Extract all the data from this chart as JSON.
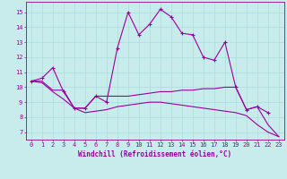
{
  "xlabel": "Windchill (Refroidissement éolien,°C)",
  "xlim": [
    -0.5,
    23.5
  ],
  "ylim": [
    6.5,
    15.7
  ],
  "yticks": [
    7,
    8,
    9,
    10,
    11,
    12,
    13,
    14,
    15
  ],
  "xticks": [
    0,
    1,
    2,
    3,
    4,
    5,
    6,
    7,
    8,
    9,
    10,
    11,
    12,
    13,
    14,
    15,
    16,
    17,
    18,
    19,
    20,
    21,
    22,
    23
  ],
  "bg_color": "#c8ecec",
  "line_color": "#990099",
  "grid_color": "#aadddd",
  "curve1_x": [
    0,
    1,
    2,
    3,
    4,
    5,
    6,
    7,
    8,
    9,
    10,
    11,
    12,
    13,
    14,
    15,
    16,
    17,
    18,
    19,
    20,
    21,
    22,
    23
  ],
  "curve1_y": [
    10.4,
    10.6,
    11.3,
    9.7,
    8.6,
    8.6,
    9.4,
    9.0,
    12.6,
    15.0,
    13.5,
    14.2,
    15.2,
    14.7,
    13.6,
    13.5,
    12.0,
    11.8,
    13.0,
    10.0,
    8.5,
    8.7,
    8.3,
    null
  ],
  "curve2_x": [
    0,
    1,
    2,
    3,
    4,
    5,
    6,
    7,
    8,
    9,
    10,
    11,
    12,
    13,
    14,
    15,
    16,
    17,
    18,
    19,
    20,
    21,
    22,
    23
  ],
  "curve2_y": [
    10.4,
    10.4,
    9.8,
    9.8,
    8.6,
    8.6,
    9.4,
    9.4,
    9.4,
    9.4,
    9.5,
    9.6,
    9.7,
    9.7,
    9.8,
    9.8,
    9.9,
    9.9,
    10.0,
    10.0,
    8.5,
    8.7,
    7.5,
    6.7
  ],
  "curve3_x": [
    0,
    1,
    2,
    3,
    4,
    5,
    6,
    7,
    8,
    9,
    10,
    11,
    12,
    13,
    14,
    15,
    16,
    17,
    18,
    19,
    20,
    21,
    22,
    23
  ],
  "curve3_y": [
    10.4,
    10.3,
    9.7,
    9.2,
    8.6,
    8.3,
    8.4,
    8.5,
    8.7,
    8.8,
    8.9,
    9.0,
    9.0,
    8.9,
    8.8,
    8.7,
    8.6,
    8.5,
    8.4,
    8.3,
    8.1,
    7.5,
    7.0,
    6.7
  ]
}
